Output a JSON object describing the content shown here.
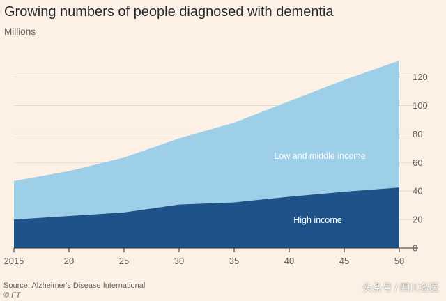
{
  "title": "Growing numbers of people diagnosed with dementia",
  "subtitle": "Millions",
  "source": "Source: Alzheimer's Disease International",
  "credit": "© FT",
  "watermark": "头条号 / 四川名医",
  "colors": {
    "background": "#fdf1e5",
    "high_income": "#1e5288",
    "low_middle_income": "#9dcfe8",
    "grid": "#e3d9cf",
    "tick_text": "#66605c"
  },
  "chart_data": {
    "type": "area",
    "stacked": true,
    "title": "Growing numbers of people diagnosed with dementia",
    "ylabel": "Millions",
    "x": [
      2015,
      2020,
      2025,
      2030,
      2035,
      2040,
      2045,
      2050
    ],
    "x_tick_labels": [
      "2015",
      "20",
      "25",
      "30",
      "35",
      "40",
      "45",
      "50"
    ],
    "ylim": [
      0,
      132
    ],
    "y_ticks": [
      0,
      20,
      40,
      60,
      80,
      100,
      120
    ],
    "y_axis_side": "right",
    "grid": true,
    "series": [
      {
        "name": "High income",
        "values": [
          20,
          22.5,
          25,
          30.5,
          32,
          36,
          39.5,
          42.5
        ],
        "color": "#1e5288"
      },
      {
        "name": "Low and middle income",
        "values": [
          27,
          31.5,
          38.5,
          46.5,
          56,
          67,
          78.5,
          89
        ],
        "color": "#9dcfe8"
      }
    ],
    "total": [
      47,
      54,
      63.5,
      77,
      88,
      103,
      118,
      131.5
    ]
  }
}
